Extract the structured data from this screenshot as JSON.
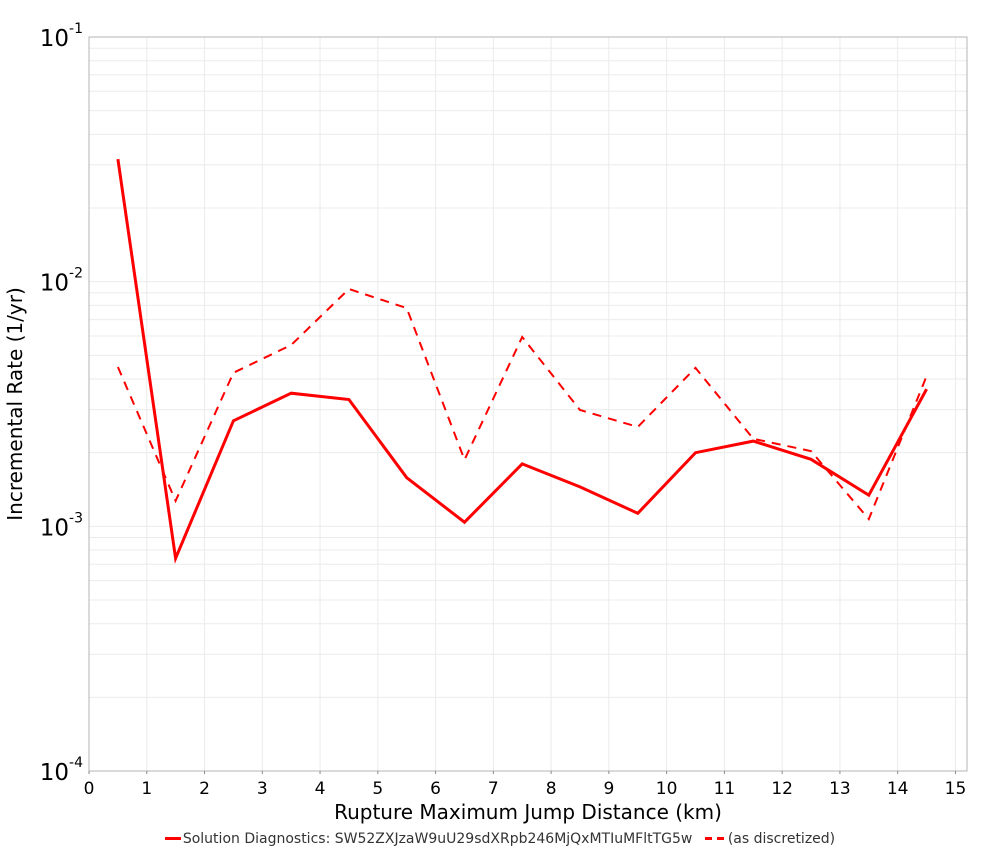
{
  "chart_data": {
    "type": "line",
    "title": "",
    "xlabel": "Rupture Maximum Jump Distance (km)",
    "ylabel": "Incremental Rate (1/yr)",
    "xlim": [
      0,
      15.2
    ],
    "ylim": [
      0.0001,
      0.1
    ],
    "yscale": "log",
    "grid": true,
    "legend_position": "bottom",
    "x_ticks": [
      0,
      1,
      2,
      3,
      4,
      5,
      6,
      7,
      8,
      9,
      10,
      11,
      12,
      13,
      14,
      15
    ],
    "y_ticks": [
      {
        "base": "10",
        "exp": "-1",
        "value": 0.1
      },
      {
        "base": "10",
        "exp": "-2",
        "value": 0.01
      },
      {
        "base": "10",
        "exp": "-3",
        "value": 0.001
      },
      {
        "base": "10",
        "exp": "-4",
        "value": 0.0001
      }
    ],
    "x": [
      0.5,
      1.5,
      2.5,
      3.5,
      4.5,
      5.5,
      6.5,
      7.5,
      8.5,
      9.5,
      10.5,
      11.5,
      12.5,
      13.5,
      14.5
    ],
    "series": [
      {
        "name": "Solution Diagnostics: SW52ZXJzaW9uU29sdXRpb246MjQxMTIuMFltTG5w",
        "style": "solid",
        "color": "#ff0000",
        "values": [
          0.0317,
          0.00074,
          0.0027,
          0.0035,
          0.0033,
          0.00158,
          0.00104,
          0.0018,
          0.00145,
          0.00113,
          0.002,
          0.00223,
          0.00188,
          0.00134,
          0.00364
        ]
      },
      {
        "name": "(as discretized)",
        "style": "dashed",
        "color": "#ff0000",
        "values": [
          0.00448,
          0.00127,
          0.00424,
          0.00551,
          0.00933,
          0.0078,
          0.00187,
          0.00594,
          0.00299,
          0.00255,
          0.00444,
          0.00228,
          0.00203,
          0.00107,
          0.00411
        ]
      }
    ]
  },
  "legend": {
    "items": [
      {
        "label": "Solution Diagnostics: SW52ZXJzaW9uU29sdXRpb246MjQxMTIuMFltTG5w"
      },
      {
        "label": "(as discretized)"
      }
    ]
  }
}
